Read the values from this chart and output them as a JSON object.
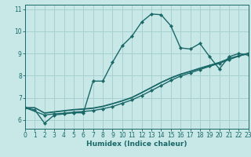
{
  "xlabel": "Humidex (Indice chaleur)",
  "bg_color": "#c8e8e8",
  "grid_color": "#a8d0d0",
  "line_color": "#1a6868",
  "xlim": [
    0,
    23
  ],
  "ylim": [
    5.6,
    11.2
  ],
  "xticks": [
    0,
    1,
    2,
    3,
    4,
    5,
    6,
    7,
    8,
    9,
    10,
    11,
    12,
    13,
    14,
    15,
    16,
    17,
    18,
    19,
    20,
    21,
    22,
    23
  ],
  "yticks": [
    6,
    7,
    8,
    9,
    10,
    11
  ],
  "curve1_x": [
    0,
    1,
    2,
    3,
    4,
    5,
    6,
    7,
    8,
    9,
    10,
    11,
    12,
    13,
    14,
    15,
    16,
    17,
    18,
    19,
    20,
    21,
    22,
    23
  ],
  "curve1_y": [
    6.55,
    6.45,
    5.85,
    6.22,
    6.27,
    6.32,
    6.32,
    7.75,
    7.75,
    8.6,
    9.35,
    9.78,
    10.42,
    10.78,
    10.75,
    10.25,
    9.25,
    9.2,
    9.45,
    8.85,
    8.3,
    8.85,
    9.0,
    8.92
  ],
  "curve2_x": [
    0,
    2,
    3,
    4,
    5,
    6,
    7,
    8,
    9,
    10,
    11,
    12,
    13,
    14,
    15,
    16,
    17,
    18,
    19,
    20,
    21,
    22,
    23
  ],
  "curve2_y": [
    6.55,
    6.22,
    6.27,
    6.3,
    6.35,
    6.38,
    6.42,
    6.5,
    6.6,
    6.75,
    6.9,
    7.1,
    7.32,
    7.55,
    7.78,
    7.98,
    8.12,
    8.27,
    8.42,
    8.55,
    8.72,
    8.88,
    9.0
  ],
  "curve3_x": [
    0,
    1,
    2,
    3,
    4,
    5,
    6,
    7,
    8,
    9,
    10,
    11,
    12,
    13,
    14,
    15,
    16,
    17,
    18,
    19,
    20,
    21,
    22,
    23
  ],
  "curve3_y": [
    6.55,
    6.55,
    6.3,
    6.35,
    6.4,
    6.45,
    6.48,
    6.52,
    6.6,
    6.72,
    6.85,
    7.0,
    7.22,
    7.45,
    7.68,
    7.88,
    8.05,
    8.18,
    8.32,
    8.45,
    8.58,
    8.75,
    8.88,
    9.0
  ],
  "curve4_x": [
    0,
    1,
    2,
    3,
    4,
    5,
    6,
    7,
    8,
    9,
    10,
    11,
    12,
    13,
    14,
    15,
    16,
    17,
    18,
    19,
    20,
    21,
    22,
    23
  ],
  "curve4_y": [
    6.55,
    6.55,
    6.32,
    6.37,
    6.42,
    6.47,
    6.5,
    6.54,
    6.62,
    6.74,
    6.87,
    7.02,
    7.24,
    7.47,
    7.7,
    7.9,
    8.07,
    8.2,
    8.34,
    8.47,
    8.6,
    8.77,
    8.9,
    9.02
  ]
}
